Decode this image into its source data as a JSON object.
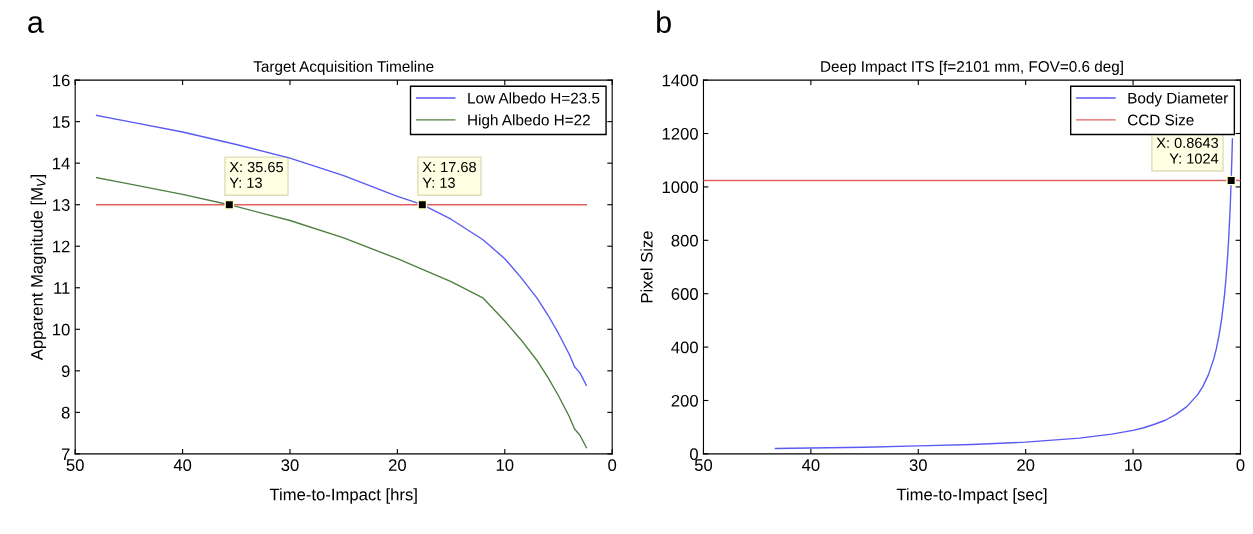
{
  "chart_data": [
    {
      "type": "line",
      "title": "Target Acquisition Timeline",
      "xlabel": "Time-to-Impact [hrs]",
      "ylabel": "Apparent Magnitude [M$_{V}$]",
      "xlim": [
        50,
        0
      ],
      "xticks": [
        50,
        40,
        30,
        20,
        10,
        0
      ],
      "ylim": [
        7,
        16
      ],
      "yticks": [
        7,
        8,
        9,
        10,
        11,
        12,
        13,
        14,
        15,
        16
      ],
      "grid": false,
      "legend": "top right",
      "annotations": [
        "a",
        {
          "text": "X: 35.65\nY: 13",
          "x": 35.65,
          "y": 13
        },
        {
          "text": "X: 17.68\nY: 13",
          "x": 17.68,
          "y": 13
        }
      ],
      "series": [
        {
          "name": "Low Albedo H=23.5",
          "color": "#5a5af5",
          "x": [
            48,
            45,
            40,
            35,
            30,
            25,
            20,
            17.68,
            15,
            12,
            10,
            8.5,
            7,
            6,
            5,
            4,
            3.5,
            3,
            2.4
          ],
          "values": [
            15.15,
            15.0,
            14.75,
            14.45,
            14.12,
            13.7,
            13.2,
            13,
            12.65,
            12.15,
            11.7,
            11.25,
            10.75,
            10.35,
            9.9,
            9.4,
            9.1,
            8.95,
            8.65
          ]
        },
        {
          "name": "High Albedo H=22",
          "color": "#4e8040",
          "x": [
            48,
            45,
            40,
            35.65,
            30,
            25,
            20,
            15,
            12,
            10,
            8.5,
            7,
            6,
            5,
            4,
            3.5,
            3,
            2.4
          ],
          "values": [
            13.65,
            13.5,
            13.25,
            13,
            12.62,
            12.2,
            11.7,
            11.15,
            10.75,
            10.2,
            9.75,
            9.25,
            8.85,
            8.4,
            7.9,
            7.6,
            7.45,
            7.15
          ]
        },
        {
          "color": "#e06060",
          "x": [
            48,
            2.4
          ],
          "values": [
            13,
            13
          ]
        }
      ]
    },
    {
      "type": "line",
      "title": "Deep Impact ITS [f=2101 mm, FOV=0.6 deg]",
      "xlabel": "Time-to-Impact [sec]",
      "ylabel": "Pixel Size",
      "xlim": [
        50,
        0
      ],
      "xticks": [
        50,
        40,
        30,
        20,
        10,
        0
      ],
      "ylim": [
        0,
        1400
      ],
      "yticks": [
        0,
        200,
        400,
        600,
        800,
        1000,
        1200,
        1400
      ],
      "grid": false,
      "legend": "top right",
      "annotations": [
        "b",
        {
          "text": "X: 0.8643\nY: 1024",
          "x": 0.8643,
          "y": 1024
        }
      ],
      "series": [
        {
          "name": "Body Diameter",
          "color": "#5a5af5",
          "x": [
            43.3,
            40,
            35,
            30,
            25,
            20,
            15,
            12,
            10,
            9,
            8,
            7,
            6,
            5,
            4,
            3.5,
            3,
            2.5,
            2.25,
            2,
            1.75,
            1.5,
            1.35,
            1.2,
            1.1,
            1.0,
            0.95,
            0.8643,
            0.8,
            0.75
          ],
          "values": [
            20,
            22,
            25,
            30,
            35,
            44,
            59,
            74,
            88,
            98,
            111,
            126,
            148,
            177,
            221,
            253,
            295,
            354,
            393,
            443,
            506,
            590,
            656,
            738,
            805,
            885,
            932,
            1024,
            1106,
            1180
          ]
        },
        {
          "name": "CCD Size",
          "color": "#e06060",
          "x": [
            50,
            0
          ],
          "values": [
            1024,
            1024
          ]
        }
      ]
    }
  ]
}
